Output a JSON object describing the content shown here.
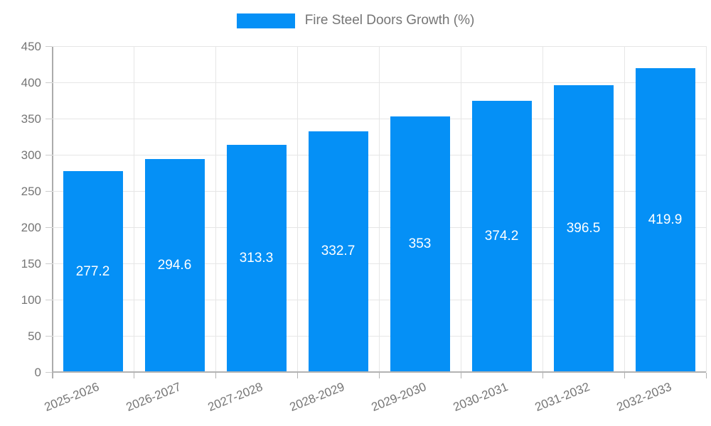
{
  "legend": {
    "label": "Fire Steel Doors Growth (%)"
  },
  "chart_data": {
    "type": "bar",
    "title": "Fire Steel Doors Growth (%)",
    "categories": [
      "2025-2026",
      "2026-2027",
      "2027-2028",
      "2028-2029",
      "2029-2030",
      "2030-2031",
      "2031-2032",
      "2032-2033"
    ],
    "values": [
      277.2,
      294.6,
      313.3,
      332.7,
      353,
      374.2,
      396.5,
      419.9
    ],
    "value_labels": [
      "277.2",
      "294.6",
      "313.3",
      "332.7",
      "353",
      "374.2",
      "396.5",
      "419.9"
    ],
    "xlabel": "",
    "ylabel": "",
    "ylim": [
      0,
      450
    ],
    "yticks": [
      0,
      50,
      100,
      150,
      200,
      250,
      300,
      350,
      400,
      450
    ],
    "grid": true,
    "legend_position": "top",
    "value_labels_inside_bars": true,
    "colors": {
      "bar": "#0590f6",
      "grid": "#e6e6e6",
      "axis": "#b3b3b3",
      "tick_text": "#757575",
      "value_label_text": "#ffffff"
    }
  }
}
